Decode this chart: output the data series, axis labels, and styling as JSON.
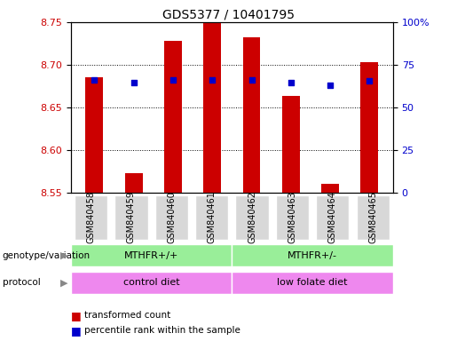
{
  "title": "GDS5377 / 10401795",
  "samples": [
    "GSM840458",
    "GSM840459",
    "GSM840460",
    "GSM840461",
    "GSM840462",
    "GSM840463",
    "GSM840464",
    "GSM840465"
  ],
  "bar_tops": [
    8.685,
    8.573,
    8.728,
    8.75,
    8.732,
    8.663,
    8.56,
    8.703
  ],
  "bar_bottom": 8.55,
  "blue_dots": [
    8.682,
    8.679,
    8.682,
    8.682,
    8.682,
    8.679,
    8.676,
    8.681
  ],
  "ylim": [
    8.55,
    8.75
  ],
  "yticks": [
    8.55,
    8.6,
    8.65,
    8.7,
    8.75
  ],
  "right_yticks": [
    0,
    25,
    50,
    75,
    100
  ],
  "bar_color": "#cc0000",
  "dot_color": "#0000cc",
  "title_fontsize": 10,
  "tick_fontsize": 8,
  "sample_fontsize": 7,
  "genotype_labels": [
    "MTHFR+/+",
    "MTHFR+/-"
  ],
  "genotype_color": "#99ee99",
  "protocol_labels": [
    "control diet",
    "low folate diet"
  ],
  "protocol_color": "#ee88ee",
  "legend_bar_label": "transformed count",
  "legend_dot_label": "percentile rank within the sample",
  "background_color": "#ffffff",
  "annotation_genotype": "genotype/variation",
  "annotation_protocol": "protocol"
}
